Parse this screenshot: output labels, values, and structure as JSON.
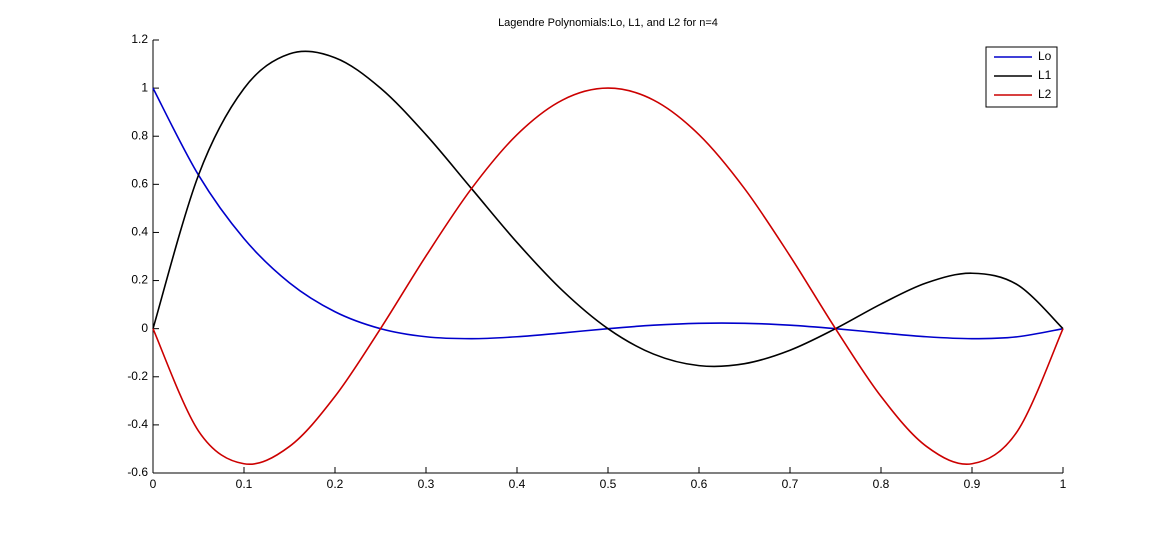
{
  "chart_data": {
    "type": "line",
    "title": "Lagendre Polynomials:Lo, L1, and L2 for n=4",
    "x": [
      0,
      0.05,
      0.1,
      0.15,
      0.2,
      0.25,
      0.3,
      0.35,
      0.4,
      0.45,
      0.5,
      0.55,
      0.6,
      0.65,
      0.7,
      0.75,
      0.8,
      0.85,
      0.9,
      0.95,
      1
    ],
    "series": [
      {
        "name": "Lo",
        "color": "#0000cc",
        "values": [
          1,
          0.6384,
          0.3744,
          0.1904,
          0.0704,
          0,
          -0.0336,
          -0.0416,
          -0.0336,
          -0.0176,
          0,
          0.0144,
          0.0224,
          0.0224,
          0.0144,
          0,
          -0.0176,
          -0.0336,
          -0.0416,
          -0.0336,
          0
        ]
      },
      {
        "name": "L1",
        "color": "#000000",
        "values": [
          0,
          0.6384,
          0.9984,
          1.1424,
          1.1264,
          1,
          0.8064,
          0.5824,
          0.3584,
          0.1584,
          0,
          -0.1056,
          -0.1536,
          -0.1456,
          -0.0896,
          0,
          0.1024,
          0.1904,
          0.2304,
          0.1824,
          0
        ]
      },
      {
        "name": "L2",
        "color": "#cc0000",
        "values": [
          0,
          -0.4256,
          -0.5616,
          -0.4896,
          -0.2816,
          0,
          0.3024,
          0.5824,
          0.8064,
          0.9504,
          1,
          0.9504,
          0.8064,
          0.5824,
          0.3024,
          0,
          -0.2816,
          -0.4896,
          -0.5616,
          -0.4256,
          0
        ]
      }
    ],
    "xlim": [
      0,
      1
    ],
    "xticks": [
      0,
      0.1,
      0.2,
      0.3,
      0.4,
      0.5,
      0.6,
      0.7,
      0.8,
      0.9,
      1
    ],
    "ylim": [
      -0.6,
      1.2
    ],
    "yticks": [
      -0.6,
      -0.4,
      -0.2,
      0,
      0.2,
      0.4,
      0.6,
      0.8,
      1,
      1.2
    ],
    "grid": false,
    "legend": "upper right"
  }
}
